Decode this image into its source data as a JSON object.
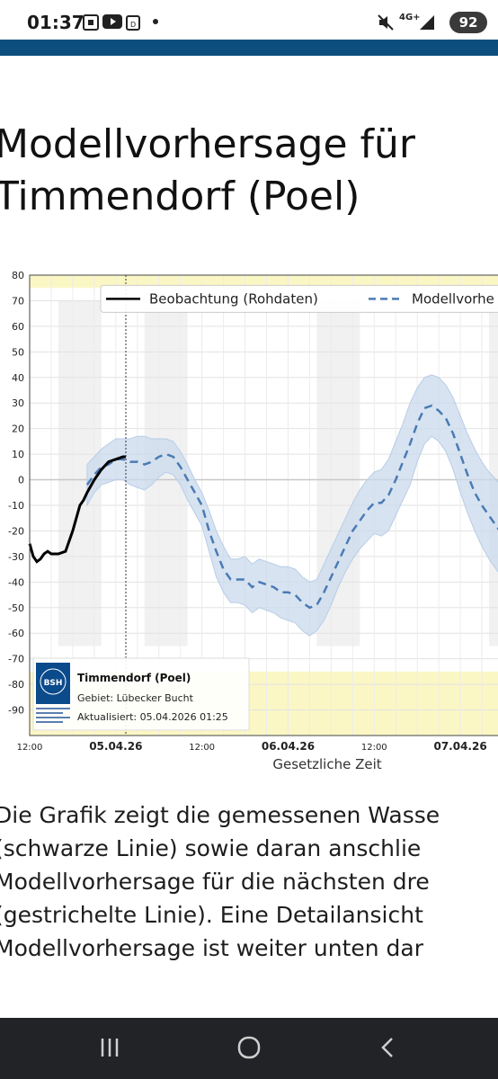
{
  "status_bar": {
    "time": "01:37",
    "network": "4G+",
    "battery": "92"
  },
  "page": {
    "title_line1": "Modellvorhersage für",
    "title_line2": "Timmendorf (Poel)"
  },
  "chart_data": {
    "type": "line",
    "y_ticks": [
      "80",
      "70",
      "60",
      "50",
      "40",
      "30",
      "20",
      "10",
      "0",
      "-10",
      "-20",
      "-30",
      "-40",
      "-50",
      "-60",
      "-70",
      "-80",
      "-90"
    ],
    "ylim": [
      -100,
      80
    ],
    "xlim_hours": [
      0,
      66
    ],
    "x_ticks": [
      {
        "label": "12:00",
        "hour": 0,
        "bold": false
      },
      {
        "label": "05.04.26",
        "hour": 12,
        "bold": true
      },
      {
        "label": "12:00",
        "hour": 24,
        "bold": false
      },
      {
        "label": "06.04.26",
        "hour": 36,
        "bold": true
      },
      {
        "label": "12:00",
        "hour": 48,
        "bold": false
      },
      {
        "label": "07.04.26",
        "hour": 60,
        "bold": true
      }
    ],
    "xlabel": "Gesetzliche Zeit",
    "legend": [
      "Beobachtung (Rohdaten)",
      "Modellvorhe"
    ],
    "info_box": {
      "station": "Timmendorf (Poel)",
      "area": "Gebiet: Lübecker Bucht",
      "updated": "Aktualisiert: 05.04.2026 01:25",
      "logo_text": "BSH"
    },
    "series": [
      {
        "name": "Beobachtung (Rohdaten)",
        "x": [
          0,
          0.5,
          1,
          1.5,
          2,
          2.5,
          3,
          4,
          5,
          6,
          6.5,
          7,
          7.5,
          8,
          9,
          10,
          11,
          12,
          13,
          13.4
        ],
        "y": [
          -25,
          -30,
          -32,
          -31,
          -29,
          -28,
          -29,
          -29,
          -28,
          -20,
          -15,
          -10,
          -8,
          -5,
          0,
          4,
          7,
          8,
          9,
          9
        ]
      },
      {
        "name": "Modellvorhe",
        "x": [
          8,
          9,
          10,
          11,
          12,
          13,
          14,
          15,
          16,
          17,
          18,
          19,
          20,
          21,
          22,
          23,
          24,
          25,
          26,
          27,
          28,
          29,
          30,
          31,
          32,
          33,
          34,
          35,
          36,
          37,
          38,
          39,
          40,
          41,
          42,
          43,
          44,
          45,
          46,
          47,
          48,
          49,
          50,
          51,
          52,
          53,
          54,
          55,
          56,
          57,
          58,
          59,
          60,
          61,
          62,
          63,
          64,
          65,
          66
        ],
        "y": [
          -2,
          2,
          5,
          6,
          8,
          8,
          7,
          7,
          6,
          7,
          9,
          10,
          9,
          5,
          0,
          -5,
          -10,
          -20,
          -28,
          -35,
          -39,
          -39,
          -39,
          -42,
          -40,
          -41,
          -42,
          -44,
          -44,
          -45,
          -48,
          -50,
          -49,
          -44,
          -38,
          -32,
          -26,
          -20,
          -16,
          -12,
          -9,
          -9,
          -6,
          0,
          7,
          14,
          22,
          28,
          29,
          27,
          24,
          18,
          10,
          2,
          -5,
          -10,
          -14,
          -18,
          -22
        ],
        "band_upper": [
          6,
          9,
          12,
          14,
          16,
          16,
          16,
          17,
          17,
          16,
          16,
          16,
          15,
          11,
          6,
          0,
          -5,
          -12,
          -20,
          -26,
          -31,
          -31,
          -30,
          -33,
          -31,
          -32,
          -33,
          -34,
          -34,
          -35,
          -38,
          -40,
          -39,
          -33,
          -27,
          -21,
          -15,
          -9,
          -4,
          0,
          3,
          4,
          8,
          15,
          22,
          30,
          36,
          40,
          41,
          40,
          37,
          32,
          25,
          18,
          12,
          7,
          3,
          0,
          -3
        ],
        "band_lower": [
          -10,
          -5,
          -2,
          -1,
          0,
          0,
          -2,
          -3,
          -4,
          -2,
          1,
          3,
          2,
          -2,
          -8,
          -13,
          -18,
          -28,
          -38,
          -44,
          -48,
          -48,
          -49,
          -52,
          -50,
          -51,
          -52,
          -54,
          -55,
          -56,
          -59,
          -61,
          -59,
          -55,
          -49,
          -42,
          -36,
          -31,
          -27,
          -24,
          -21,
          -22,
          -20,
          -14,
          -8,
          -2,
          7,
          14,
          17,
          15,
          11,
          4,
          -5,
          -13,
          -20,
          -26,
          -31,
          -35,
          -39
        ]
      }
    ]
  },
  "paragraph": [
    "Die Grafik zeigt die gemessenen Wasse",
    "(schwarze Linie) sowie daran anschlie",
    "Modellvorhersage für die nächsten dre",
    "(gestrichelte Linie). Eine Detailansicht",
    "Modellvorhersage ist weiter unten dar"
  ],
  "colors": {
    "header_blue": "#0c4f7e",
    "forecast": "#4a7bb5",
    "band": "#c9d9ec",
    "yellow_band": "#fbf7c5"
  }
}
